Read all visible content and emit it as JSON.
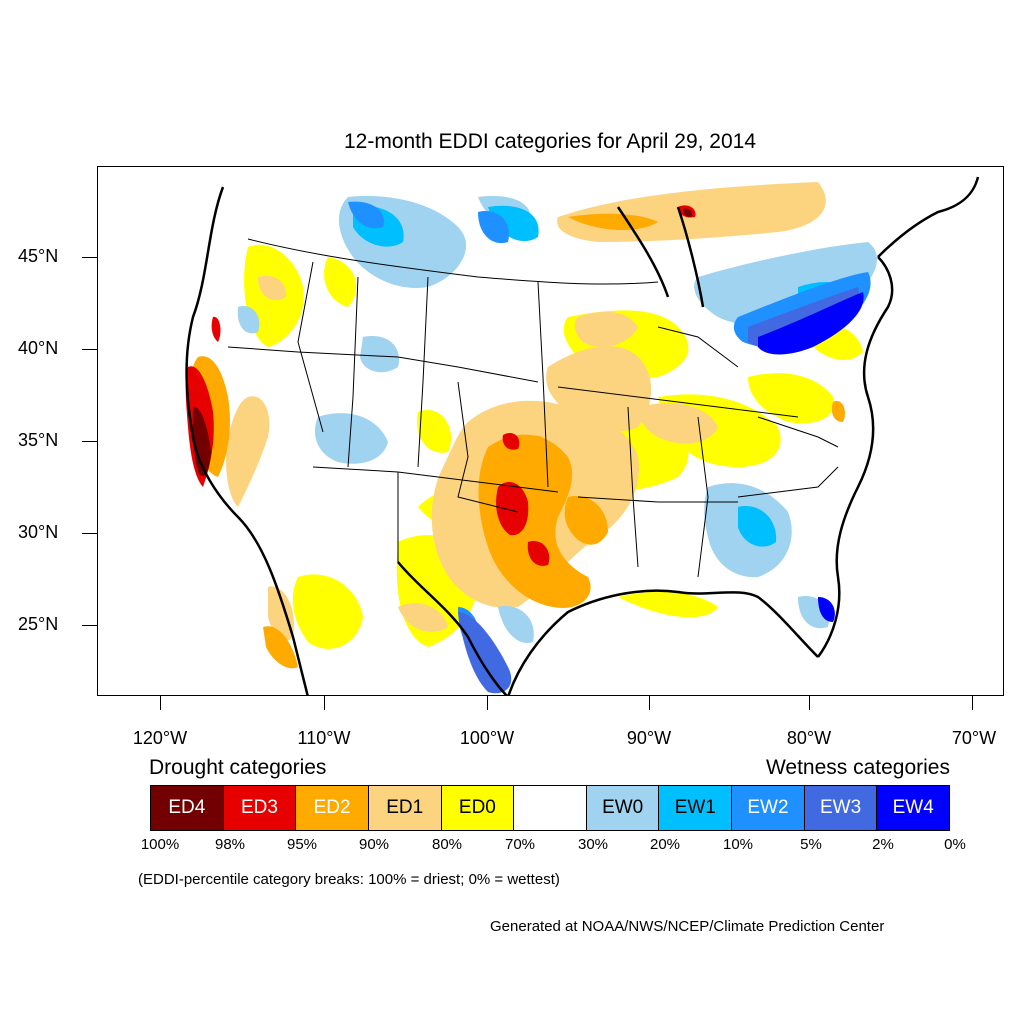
{
  "title": "12-month EDDI categories for April 29, 2014",
  "map": {
    "latitude_labels": [
      "45°N",
      "40°N",
      "35°N",
      "30°N",
      "25°N"
    ],
    "longitude_labels": [
      "120°W",
      "110°W",
      "100°W",
      "90°W",
      "80°W",
      "70°W"
    ]
  },
  "legend": {
    "drought_heading": "Drought categories",
    "wetness_heading": "Wetness categories",
    "categories": [
      {
        "label": "ED4",
        "color": "#730000",
        "text_color": "#ffffff"
      },
      {
        "label": "ED3",
        "color": "#e60000",
        "text_color": "#ffffff"
      },
      {
        "label": "ED2",
        "color": "#ffaa00",
        "text_color": "#ffffff"
      },
      {
        "label": "ED1",
        "color": "#fcd37f",
        "text_color": "#000000"
      },
      {
        "label": "ED0",
        "color": "#ffff00",
        "text_color": "#000000"
      },
      {
        "label": "",
        "color": "#ffffff",
        "text_color": "#000000"
      },
      {
        "label": "EW0",
        "color": "#9fd3f0",
        "text_color": "#000000"
      },
      {
        "label": "EW1",
        "color": "#00bfff",
        "text_color": "#000000"
      },
      {
        "label": "EW2",
        "color": "#1e90ff",
        "text_color": "#ffffff"
      },
      {
        "label": "EW3",
        "color": "#4169e1",
        "text_color": "#ffffff"
      },
      {
        "label": "EW4",
        "color": "#0000ff",
        "text_color": "#ffffff"
      }
    ],
    "percentile_breaks": [
      "100%",
      "98%",
      "95%",
      "90%",
      "80%",
      "70%",
      "30%",
      "20%",
      "10%",
      "5%",
      "2%",
      "0%"
    ],
    "note": "(EDDI-percentile category breaks: 100% = driest; 0% = wettest)"
  },
  "credit": "Generated at NOAA/NWS/NCEP/Climate Prediction Center"
}
